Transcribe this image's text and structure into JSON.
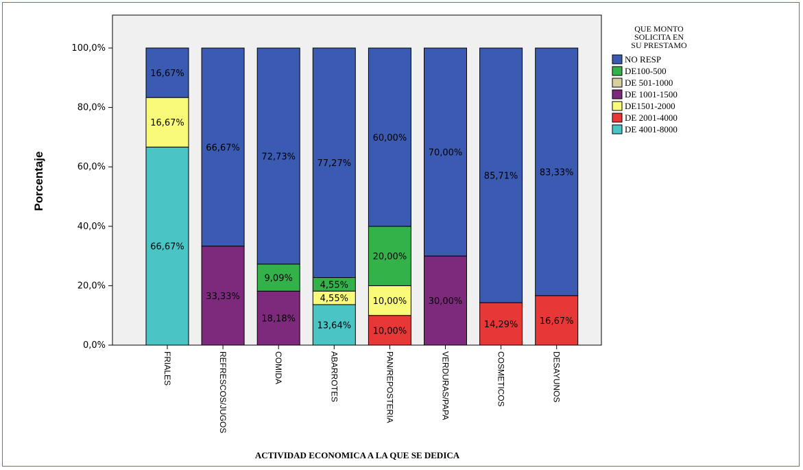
{
  "chart_data": {
    "type": "bar",
    "stacked": true,
    "xlabel": "ACTIVIDAD ECONOMICA A LA QUE SE DEDICA",
    "ylabel": "Porcentaje",
    "ylim": [
      0,
      100
    ],
    "yticks": [
      "0,0%",
      "20,0%",
      "40,0%",
      "60,0%",
      "80,0%",
      "100,0%"
    ],
    "grid": false,
    "legend": {
      "title": [
        "QUE MONTO",
        "SOLICITA EN",
        "SU PRESTAMO"
      ],
      "placement": "right"
    },
    "categories": [
      "FRIALES",
      "REFRESCOS/JUGOS",
      "COMIDA",
      "ABARROTES",
      "PAN/REPOSTERIA",
      "VERDURAS/PAPA",
      "COSMETICOS",
      "DESAYUNOS"
    ],
    "series": [
      {
        "name": "DE 4001-8000",
        "color": "#4ac4c4",
        "values": [
          66.67,
          0,
          0,
          13.64,
          0,
          0,
          0,
          0
        ],
        "labels": [
          "66,67%",
          "",
          "",
          "13,64%",
          "",
          "",
          "",
          ""
        ]
      },
      {
        "name": "DE 2001-4000",
        "color": "#e83737",
        "values": [
          0,
          0,
          0,
          0,
          10.0,
          0,
          14.29,
          16.67
        ],
        "labels": [
          "",
          "",
          "",
          "",
          "10,00%",
          "",
          "14,29%",
          "16,67%"
        ]
      },
      {
        "name": "DE1501-2000",
        "color": "#fafa7a",
        "values": [
          16.67,
          0,
          0,
          4.55,
          10.0,
          0,
          0,
          0
        ],
        "labels": [
          "16,67%",
          "",
          "",
          "4,55%",
          "10,00%",
          "",
          "",
          ""
        ]
      },
      {
        "name": "DE 1001-1500",
        "color": "#7d2a7d",
        "values": [
          0,
          33.33,
          18.18,
          0,
          0,
          30.0,
          0,
          0
        ],
        "labels": [
          "",
          "33,33%",
          "18,18%",
          "",
          "",
          "30,00%",
          "",
          ""
        ]
      },
      {
        "name": "DE 501-1000",
        "color": "#d8cfa0",
        "values": [
          0,
          0,
          0,
          0,
          0,
          0,
          0,
          0
        ],
        "labels": [
          "",
          "",
          "",
          "",
          "",
          "",
          "",
          ""
        ]
      },
      {
        "name": "DE100-500",
        "color": "#33b24a",
        "values": [
          0,
          0,
          9.09,
          4.55,
          20.0,
          0,
          0,
          0
        ],
        "labels": [
          "",
          "",
          "9,09%",
          "4,55%",
          "20,00%",
          "",
          "",
          ""
        ]
      },
      {
        "name": "NO RESP",
        "color": "#3b5bb3",
        "values": [
          16.67,
          66.67,
          72.73,
          77.27,
          60.0,
          70.0,
          85.71,
          83.33
        ],
        "labels": [
          "16,67%",
          "66,67%",
          "72,73%",
          "77,27%",
          "60,00%",
          "70,00%",
          "85,71%",
          "83,33%"
        ]
      }
    ],
    "legend_order": [
      "NO RESP",
      "DE100-500",
      "DE 501-1000",
      "DE 1001-1500",
      "DE1501-2000",
      "DE 2001-4000",
      "DE 4001-8000"
    ],
    "plot_background": "#f0f0f0"
  }
}
